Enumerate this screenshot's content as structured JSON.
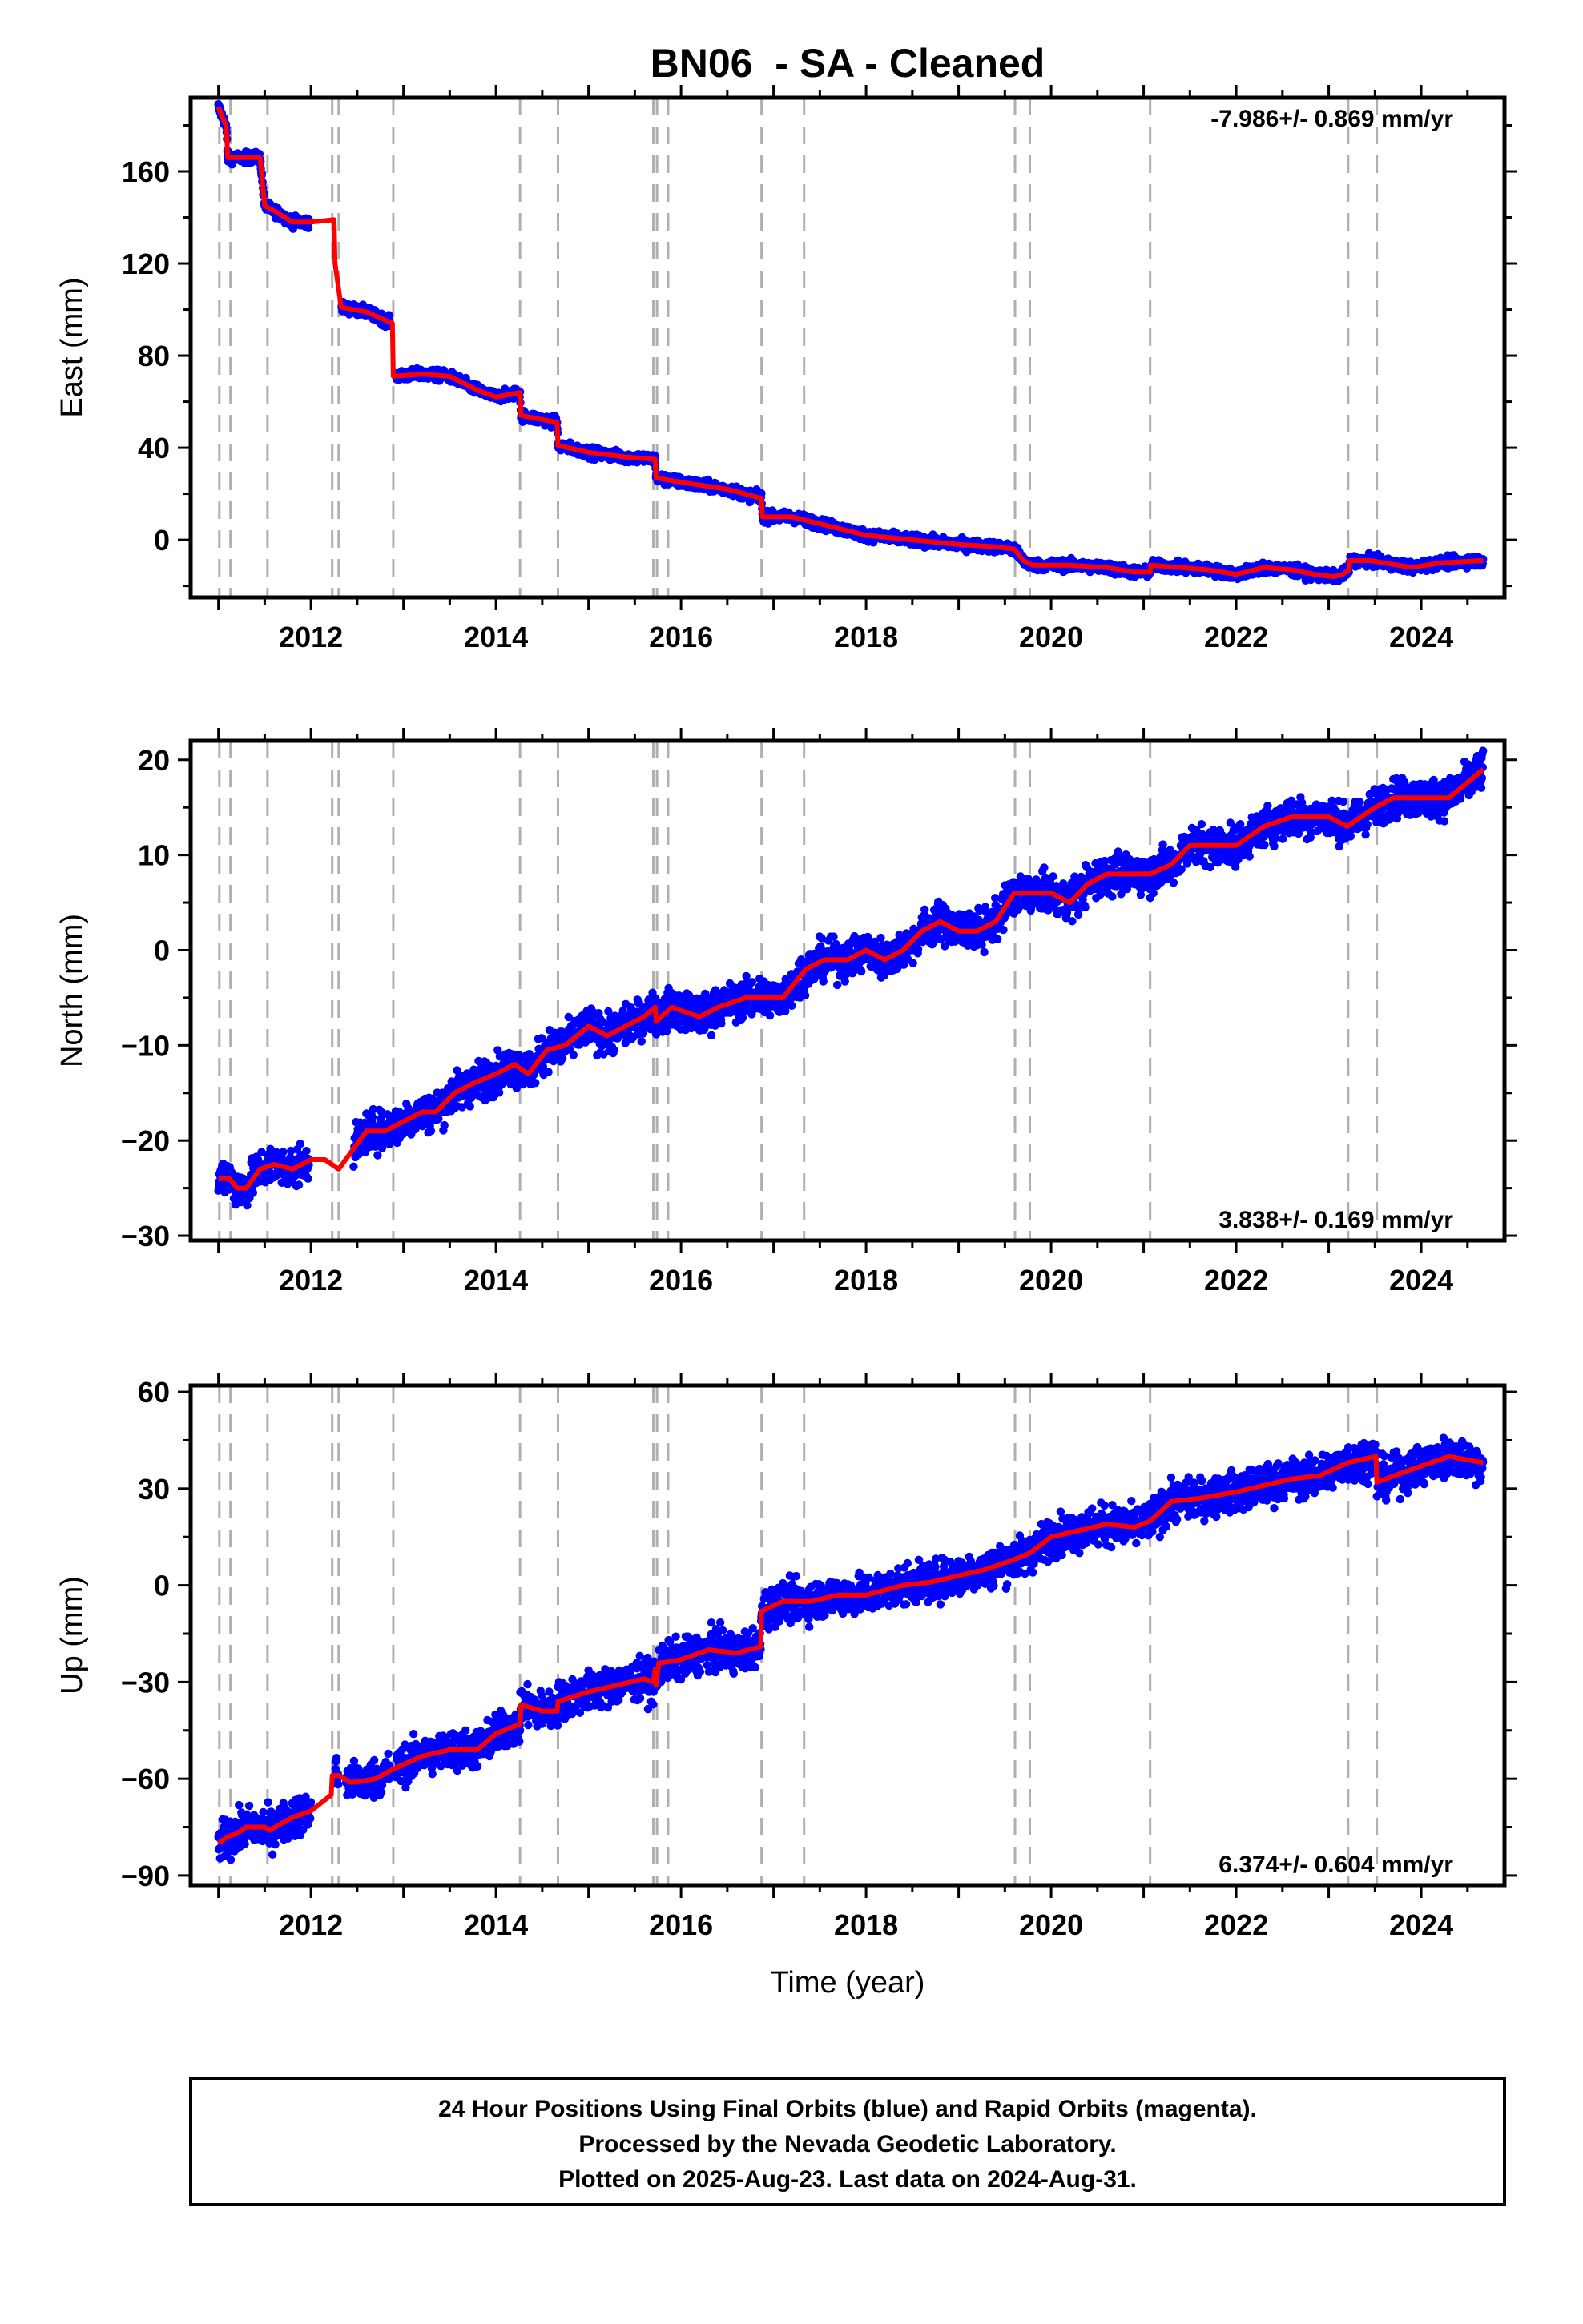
{
  "title": "BN06  - SA - Cleaned",
  "xlabel": "Time (year)",
  "footer": {
    "line1": "24 Hour Positions Using Final Orbits (blue) and Rapid Orbits (magenta).",
    "line2": "Processed by the Nevada Geodetic Laboratory.",
    "line3": "Plotted on 2025-Aug-23. Last data on 2024-Aug-31."
  },
  "colors": {
    "observations": "#0000ff",
    "model": "#ff0000",
    "steps": "#b0b0b0",
    "frame": "#000000"
  },
  "chart_data": [
    {
      "type": "scatter",
      "panel": "east",
      "ylabel": "East (mm)",
      "rate_label": "-7.986+/- 0.869 mm/yr",
      "rate_position": "top-right",
      "xlim": [
        2010.7,
        2024.9
      ],
      "ylim": [
        -25,
        192
      ],
      "x_ticks": [
        2012,
        2014,
        2016,
        2018,
        2020,
        2022,
        2024
      ],
      "y_ticks": [
        0,
        40,
        80,
        120,
        160
      ],
      "data_start": 2011.0,
      "data_end": 2024.67,
      "gaps": [
        [
          2011.98,
          2012.3
        ],
        [
          2012.3,
          2012.33
        ],
        [
          2012.85,
          2012.92
        ]
      ],
      "scatter_noise_mm": 1.6,
      "series": [
        {
          "name": "model",
          "x": [
            2011.0,
            2011.08,
            2011.09,
            2011.1,
            2011.45,
            2011.5,
            2011.6,
            2011.8,
            2012.0,
            2012.25,
            2012.26,
            2012.32,
            2012.33,
            2012.6,
            2012.88,
            2012.89,
            2013.2,
            2013.5,
            2013.8,
            2014.0,
            2014.26,
            2014.27,
            2014.66,
            2014.67,
            2015.0,
            2015.4,
            2015.72,
            2015.73,
            2016.0,
            2016.5,
            2016.87,
            2016.88,
            2017.2,
            2017.5,
            2018.0,
            2018.5,
            2019.0,
            2019.4,
            2019.6,
            2019.7,
            2019.8,
            2020.2,
            2020.6,
            2020.9,
            2021.07,
            2021.08,
            2021.4,
            2021.7,
            2022.0,
            2022.3,
            2022.6,
            2022.85,
            2023.05,
            2023.15,
            2023.22,
            2023.23,
            2023.45,
            2023.6,
            2023.9,
            2024.2,
            2024.67
          ],
          "y": [
            188,
            180,
            176,
            166,
            166,
            145,
            143,
            138,
            138,
            139,
            120,
            103,
            101,
            99,
            94,
            71,
            72,
            71,
            65,
            62,
            64,
            54,
            51,
            41,
            38,
            36,
            35,
            27,
            25,
            22,
            18,
            10,
            10,
            7,
            2,
            0,
            -2,
            -3,
            -4,
            -9,
            -11,
            -11,
            -12,
            -14,
            -14,
            -11,
            -12,
            -13,
            -15,
            -12,
            -13,
            -15,
            -16,
            -15,
            -13,
            -9,
            -9,
            -10,
            -12,
            -10,
            -9
          ]
        }
      ],
      "step_lines_x": [
        2011.01,
        2011.13,
        2011.53,
        2012.23,
        2012.3,
        2012.89,
        2014.26,
        2014.67,
        2015.7,
        2015.74,
        2015.86,
        2016.87,
        2017.33,
        2019.61,
        2019.77,
        2021.07,
        2023.21,
        2023.52
      ]
    },
    {
      "type": "scatter",
      "panel": "north",
      "ylabel": "North (mm)",
      "rate_label": "3.838+/- 0.169 mm/yr",
      "rate_position": "bottom-right",
      "xlim": [
        2010.7,
        2024.9
      ],
      "ylim": [
        -30.5,
        22
      ],
      "x_ticks": [
        2012,
        2014,
        2016,
        2018,
        2020,
        2022,
        2024
      ],
      "y_ticks": [
        -30,
        -20,
        -10,
        0,
        10,
        20
      ],
      "data_start": 2011.0,
      "data_end": 2024.67,
      "gaps": [
        [
          2011.98,
          2012.46
        ]
      ],
      "scatter_noise_mm": 1.4,
      "series": [
        {
          "name": "model",
          "x": [
            2011.0,
            2011.12,
            2011.2,
            2011.3,
            2011.45,
            2011.6,
            2011.8,
            2012.0,
            2012.15,
            2012.3,
            2012.45,
            2012.6,
            2012.8,
            2013.0,
            2013.2,
            2013.35,
            2013.55,
            2013.75,
            2014.0,
            2014.2,
            2014.35,
            2014.55,
            2014.75,
            2015.0,
            2015.2,
            2015.4,
            2015.6,
            2015.72,
            2015.73,
            2015.9,
            2016.2,
            2016.4,
            2016.7,
            2016.9,
            2017.1,
            2017.35,
            2017.55,
            2017.8,
            2018.0,
            2018.2,
            2018.4,
            2018.6,
            2018.8,
            2019.0,
            2019.2,
            2019.4,
            2019.6,
            2019.75,
            2020.0,
            2020.2,
            2020.4,
            2020.6,
            2020.8,
            2021.07,
            2021.3,
            2021.5,
            2021.8,
            2022.0,
            2022.3,
            2022.6,
            2022.85,
            2023.0,
            2023.2,
            2023.5,
            2023.7,
            2024.0,
            2024.3,
            2024.67
          ],
          "y": [
            -24,
            -24,
            -25,
            -25,
            -23,
            -22.5,
            -23,
            -22,
            -22,
            -23,
            -21,
            -19,
            -19,
            -18,
            -17,
            -17,
            -15,
            -14,
            -13,
            -12,
            -13,
            -10.5,
            -10,
            -8,
            -9,
            -8,
            -7,
            -6,
            -7.5,
            -6,
            -7,
            -6,
            -5,
            -5,
            -5,
            -2,
            -1,
            -1,
            0,
            -1,
            0,
            2,
            3,
            2,
            2,
            3,
            6,
            6,
            6,
            5,
            7,
            8,
            8,
            8,
            9,
            11,
            11,
            11,
            13,
            14,
            14,
            14,
            13,
            15,
            16,
            16,
            16,
            19
          ]
        }
      ],
      "step_lines_x": [
        2011.01,
        2011.13,
        2011.53,
        2012.23,
        2012.3,
        2012.89,
        2014.26,
        2014.67,
        2015.7,
        2015.74,
        2015.86,
        2016.87,
        2017.33,
        2019.61,
        2019.77,
        2021.07,
        2023.21,
        2023.52
      ]
    },
    {
      "type": "scatter",
      "panel": "up",
      "ylabel": "Up (mm)",
      "rate_label": "6.374+/- 0.604 mm/yr",
      "rate_position": "bottom-right",
      "xlim": [
        2010.7,
        2024.9
      ],
      "ylim": [
        -93,
        62
      ],
      "x_ticks": [
        2012,
        2014,
        2016,
        2018,
        2020,
        2022,
        2024
      ],
      "y_ticks": [
        -90,
        -60,
        -30,
        0,
        30,
        60
      ],
      "data_start": 2011.0,
      "data_end": 2024.67,
      "gaps": [
        [
          2012.0,
          2012.25
        ],
        [
          2012.3,
          2012.38
        ],
        [
          2012.85,
          2012.92
        ]
      ],
      "scatter_noise_mm": 4.2,
      "series": [
        {
          "name": "model",
          "x": [
            2011.0,
            2011.1,
            2011.2,
            2011.3,
            2011.5,
            2011.55,
            2011.8,
            2012.0,
            2012.22,
            2012.23,
            2012.3,
            2012.42,
            2012.5,
            2012.7,
            2012.89,
            2013.2,
            2013.5,
            2013.8,
            2014.0,
            2014.26,
            2014.27,
            2014.5,
            2014.66,
            2014.67,
            2015.0,
            2015.3,
            2015.6,
            2015.7,
            2015.72,
            2015.73,
            2015.76,
            2015.8,
            2016.0,
            2016.3,
            2016.6,
            2016.86,
            2016.87,
            2017.1,
            2017.4,
            2017.7,
            2018.0,
            2018.4,
            2018.7,
            2019.0,
            2019.3,
            2019.6,
            2019.77,
            2020.0,
            2020.3,
            2020.6,
            2020.9,
            2021.07,
            2021.3,
            2021.6,
            2022.0,
            2022.3,
            2022.6,
            2022.9,
            2023.2,
            2023.51,
            2023.52,
            2023.8,
            2024.1,
            2024.3,
            2024.67
          ],
          "y": [
            -80,
            -78,
            -77,
            -75,
            -75,
            -76,
            -72,
            -70,
            -65,
            -59,
            -59,
            -61,
            -61,
            -60,
            -57,
            -53,
            -51,
            -51,
            -46,
            -43,
            -37,
            -39,
            -39,
            -36,
            -33,
            -31,
            -29,
            -30,
            -26,
            -31,
            -24,
            -24,
            -23,
            -20,
            -21,
            -19,
            -8,
            -5,
            -5,
            -3,
            -3,
            0,
            1,
            3,
            5,
            8,
            10,
            15,
            17,
            19,
            18,
            20,
            26,
            27,
            29,
            31,
            33,
            34,
            38,
            40,
            32,
            35,
            38,
            40,
            38
          ]
        }
      ],
      "step_lines_x": [
        2011.01,
        2011.13,
        2011.53,
        2012.23,
        2012.3,
        2012.89,
        2014.26,
        2014.67,
        2015.7,
        2015.74,
        2015.86,
        2016.87,
        2017.33,
        2019.61,
        2019.77,
        2021.07,
        2023.21,
        2023.52
      ]
    }
  ]
}
